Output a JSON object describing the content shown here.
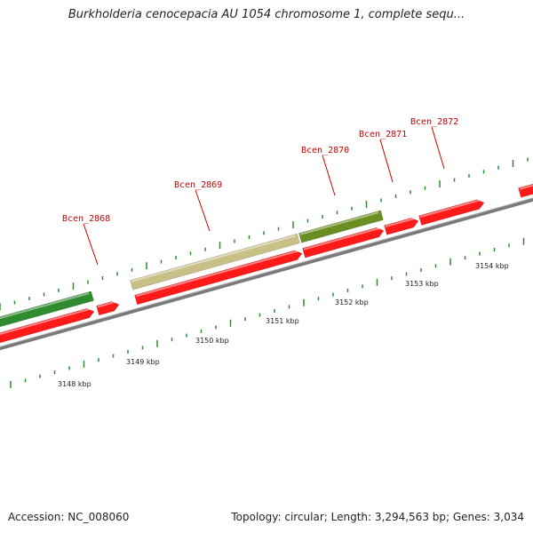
{
  "title": "Burkholderia cenocepacia AU 1054 chromosome 1, complete sequ...",
  "footer": {
    "accession": "Accession: NC_008060",
    "stats": "Topology: circular; Length: 3,294,563 bp; Genes: 3,034"
  },
  "colors": {
    "forward_gene": "#ff1a1a",
    "gene_dark_green": "#2e8b2e",
    "gene_olive": "#6b8e23",
    "gene_khaki": "#c8c087",
    "backbone": "#8a8a8a",
    "tick": "#2e8b2e",
    "label": "#cc0000"
  },
  "gene_labels": [
    "Bcen_2868",
    "Bcen_2869",
    "Bcen_2870",
    "Bcen_2871",
    "Bcen_2872"
  ],
  "kbp_labels": [
    "3148 kbp",
    "3149 kbp",
    "3150 kbp",
    "3151 kbp",
    "3152 kbp",
    "3153 kbp",
    "3154 kbp"
  ]
}
